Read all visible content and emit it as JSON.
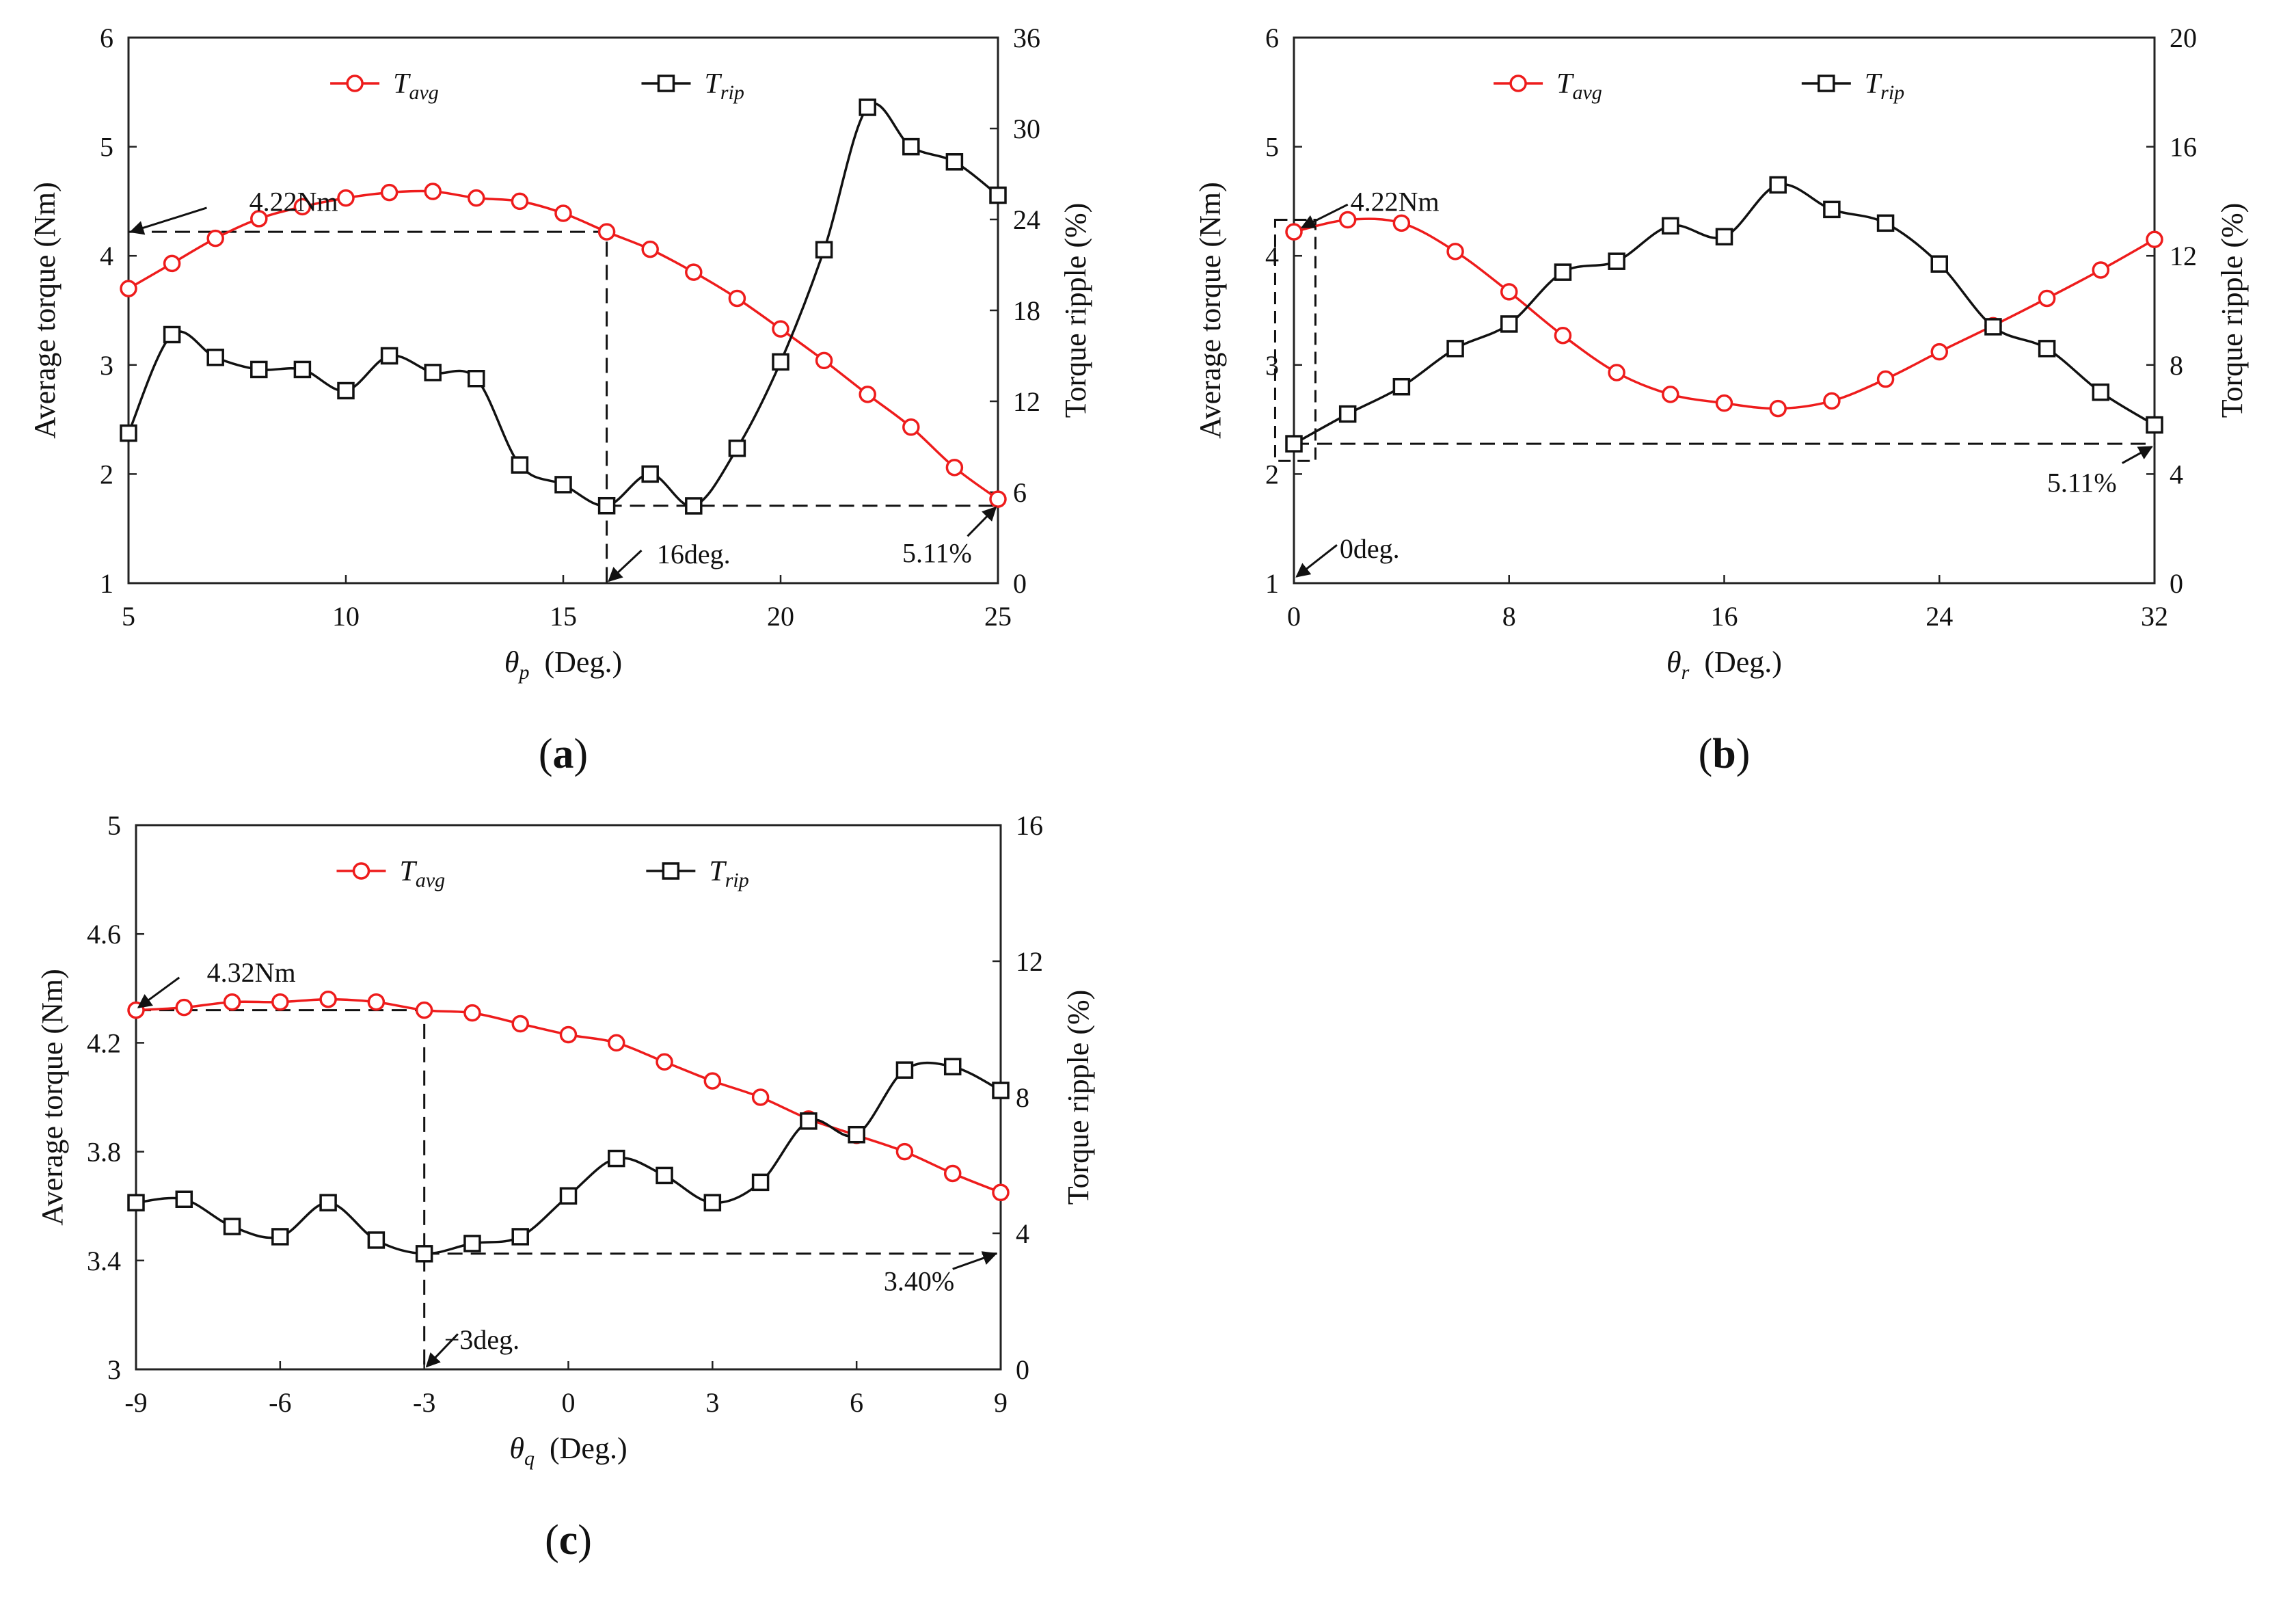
{
  "colors": {
    "avg": "#ee1c1c",
    "rip": "#111111",
    "frame": "#222222"
  },
  "chart_data": [
    {
      "type": "line",
      "panel_label": "a",
      "xlabel": {
        "sym": "θ",
        "sub": "p",
        "rest": "(Deg.)"
      },
      "ylabel_left": "Average torque  (Nm)",
      "ylabel_right": "Torque ripple (%)",
      "xlim": [
        5,
        25
      ],
      "xticks": [
        5,
        10,
        15,
        20,
        25
      ],
      "xtick_labels": [
        "5",
        "10",
        "15",
        "20",
        "25"
      ],
      "ylim_left": [
        1,
        6
      ],
      "yticks_left": [
        1,
        2,
        3,
        4,
        5,
        6
      ],
      "ytick_labels_left": [
        "1",
        "2",
        "3",
        "4",
        "5",
        "6"
      ],
      "ylim_right": [
        0,
        36
      ],
      "yticks_right": [
        0,
        6,
        12,
        18,
        24,
        30,
        36
      ],
      "ytick_labels_right": [
        "0",
        "6",
        "12",
        "18",
        "24",
        "30",
        "36"
      ],
      "legend": [
        {
          "base": "T",
          "sub": "avg",
          "series": "avg"
        },
        {
          "base": "T",
          "sub": "rip",
          "series": "rip"
        }
      ],
      "series": [
        {
          "name": "T_avg",
          "axis": "left",
          "marker": "circle",
          "x": [
            5,
            6,
            7,
            8,
            9,
            10,
            11,
            12,
            13,
            14,
            15,
            16,
            17,
            18,
            19,
            20,
            21,
            22,
            23,
            24,
            25
          ],
          "values": [
            3.7,
            3.93,
            4.16,
            4.34,
            4.45,
            4.53,
            4.58,
            4.59,
            4.53,
            4.5,
            4.39,
            4.22,
            4.06,
            3.85,
            3.61,
            3.33,
            3.04,
            2.73,
            2.43,
            2.06,
            1.77
          ]
        },
        {
          "name": "T_rip",
          "axis": "right",
          "marker": "square",
          "x": [
            5,
            6,
            7,
            8,
            9,
            10,
            11,
            12,
            13,
            14,
            15,
            16,
            17,
            18,
            19,
            20,
            21,
            22,
            23,
            24,
            25
          ],
          "values": [
            9.9,
            16.4,
            14.9,
            14.1,
            14.1,
            12.7,
            15.0,
            13.9,
            13.5,
            7.8,
            6.5,
            5.11,
            7.2,
            5.1,
            8.9,
            14.6,
            22.0,
            31.4,
            28.8,
            27.8,
            25.6
          ]
        }
      ],
      "guides": [
        {
          "axis": "left",
          "points": [
            [
              5,
              4.22
            ],
            [
              16,
              4.22
            ],
            [
              16,
              1
            ]
          ]
        },
        {
          "axis": "right",
          "points": [
            [
              16,
              5.11
            ],
            [
              25,
              5.11
            ]
          ]
        }
      ],
      "annotations": [
        {
          "text": "4.22Nm",
          "axis": "left",
          "label_at": [
            8.8,
            4.5
          ],
          "anchor": "middle",
          "arrow_from": [
            6.8,
            4.44
          ],
          "arrow_to": [
            5.05,
            4.22
          ]
        },
        {
          "text": "16deg.",
          "axis": "left",
          "label_at": [
            18.0,
            1.27
          ],
          "anchor": "middle",
          "arrow_from": [
            16.8,
            1.3
          ],
          "arrow_to": [
            16.05,
            1.02
          ]
        },
        {
          "text": "5.11%",
          "axis": "right",
          "label_at": [
            23.6,
            2.0
          ],
          "anchor": "middle",
          "arrow_from": [
            24.3,
            3.1
          ],
          "arrow_to": [
            24.95,
            5.0
          ]
        }
      ]
    },
    {
      "type": "line",
      "panel_label": "b",
      "xlabel": {
        "sym": "θ",
        "sub": "r",
        "rest": "(Deg.)"
      },
      "ylabel_left": "Average torque  (Nm)",
      "ylabel_right": "Torque ripple (%)",
      "xlim": [
        0,
        32
      ],
      "xticks": [
        0,
        8,
        16,
        24,
        32
      ],
      "xtick_labels": [
        "0",
        "8",
        "16",
        "24",
        "32"
      ],
      "ylim_left": [
        1,
        6
      ],
      "yticks_left": [
        1,
        2,
        3,
        4,
        5,
        6
      ],
      "ytick_labels_left": [
        "1",
        "2",
        "3",
        "4",
        "5",
        "6"
      ],
      "ylim_right": [
        0,
        20
      ],
      "yticks_right": [
        0,
        4,
        8,
        12,
        16,
        20
      ],
      "ytick_labels_right": [
        "0",
        "4",
        "8",
        "12",
        "16",
        "20"
      ],
      "legend": [
        {
          "base": "T",
          "sub": "avg",
          "series": "avg"
        },
        {
          "base": "T",
          "sub": "rip",
          "series": "rip"
        }
      ],
      "series": [
        {
          "name": "T_avg",
          "axis": "left",
          "marker": "circle",
          "x": [
            0,
            2,
            4,
            6,
            8,
            10,
            12,
            14,
            16,
            18,
            20,
            22,
            24,
            26,
            28,
            30,
            32
          ],
          "values": [
            4.22,
            4.33,
            4.3,
            4.04,
            3.67,
            3.27,
            2.93,
            2.73,
            2.65,
            2.6,
            2.67,
            2.87,
            3.12,
            3.36,
            3.61,
            3.87,
            4.15
          ]
        },
        {
          "name": "T_rip",
          "axis": "right",
          "marker": "square",
          "x": [
            0,
            2,
            4,
            6,
            8,
            10,
            12,
            14,
            16,
            18,
            20,
            22,
            24,
            26,
            28,
            30,
            32
          ],
          "values": [
            5.11,
            6.2,
            7.2,
            8.6,
            9.5,
            11.4,
            11.8,
            13.1,
            12.7,
            14.6,
            13.7,
            13.2,
            11.7,
            9.4,
            8.6,
            7.0,
            5.8
          ]
        }
      ],
      "guides": [
        {
          "axis": "right",
          "points": [
            [
              0,
              5.11
            ],
            [
              32,
              5.11
            ]
          ]
        }
      ],
      "boxes": [
        {
          "axis": "left",
          "x0": -0.7,
          "x1": 0.8,
          "y0": 2.12,
          "y1": 4.33
        }
      ],
      "annotations": [
        {
          "text": "4.22Nm",
          "axis": "left",
          "label_at": [
            2.1,
            4.5
          ],
          "anchor": "start",
          "arrow_from": [
            2.0,
            4.47
          ],
          "arrow_to": [
            0.3,
            4.26
          ]
        },
        {
          "text": "0deg.",
          "axis": "left",
          "label_at": [
            1.7,
            1.32
          ],
          "anchor": "start",
          "arrow_from": [
            1.6,
            1.35
          ],
          "arrow_to": [
            0.1,
            1.06
          ]
        },
        {
          "text": "5.11%",
          "axis": "right",
          "label_at": [
            29.3,
            3.7
          ],
          "anchor": "middle",
          "arrow_from": [
            30.8,
            4.4
          ],
          "arrow_to": [
            31.9,
            5.0
          ]
        }
      ]
    },
    {
      "type": "line",
      "panel_label": "c",
      "xlabel": {
        "sym": "θ",
        "sub": "q",
        "rest": "(Deg.)"
      },
      "ylabel_left": "Average torque  (Nm)",
      "ylabel_right": "Torque ripple (%)",
      "xlim": [
        -9,
        9
      ],
      "xticks": [
        -9,
        -6,
        -3,
        0,
        3,
        6,
        9
      ],
      "xtick_labels": [
        "-9",
        "-6",
        "-3",
        "0",
        "3",
        "6",
        "9"
      ],
      "ylim_left": [
        3,
        5
      ],
      "yticks_left": [
        3,
        3.4,
        3.8,
        4.2,
        4.6,
        5
      ],
      "ytick_labels_left": [
        "3",
        "3.4",
        "3.8",
        "4.2",
        "4.6",
        "5"
      ],
      "ylim_right": [
        0,
        16
      ],
      "yticks_right": [
        0,
        4,
        8,
        12,
        16
      ],
      "ytick_labels_right": [
        "0",
        "4",
        "8",
        "12",
        "16"
      ],
      "legend": [
        {
          "base": "T",
          "sub": "avg",
          "series": "avg"
        },
        {
          "base": "T",
          "sub": "rip",
          "series": "rip"
        }
      ],
      "series": [
        {
          "name": "T_avg",
          "axis": "left",
          "marker": "circle",
          "x": [
            -9,
            -8,
            -7,
            -6,
            -5,
            -4,
            -3,
            -2,
            -1,
            0,
            1,
            2,
            3,
            4,
            5,
            6,
            7,
            8,
            9
          ],
          "values": [
            4.32,
            4.33,
            4.35,
            4.35,
            4.36,
            4.35,
            4.32,
            4.31,
            4.27,
            4.23,
            4.2,
            4.13,
            4.06,
            4.0,
            3.92,
            3.86,
            3.8,
            3.72,
            3.65
          ]
        },
        {
          "name": "T_rip",
          "axis": "right",
          "marker": "square",
          "x": [
            -9,
            -8,
            -7,
            -6,
            -5,
            -4,
            -3,
            -2,
            -1,
            0,
            1,
            2,
            3,
            4,
            5,
            6,
            7,
            8,
            9
          ],
          "values": [
            4.9,
            5.0,
            4.2,
            3.9,
            4.9,
            3.8,
            3.4,
            3.7,
            3.9,
            5.1,
            6.2,
            5.7,
            4.9,
            5.5,
            7.3,
            6.9,
            8.8,
            8.9,
            8.2
          ]
        }
      ],
      "guides": [
        {
          "axis": "left",
          "points": [
            [
              -9,
              4.32
            ],
            [
              -3,
              4.32
            ],
            [
              -3,
              3.0
            ]
          ]
        },
        {
          "axis": "right",
          "points": [
            [
              -3,
              3.4
            ],
            [
              9,
              3.4
            ]
          ]
        }
      ],
      "annotations": [
        {
          "text": "4.32Nm",
          "axis": "left",
          "label_at": [
            -6.6,
            4.46
          ],
          "anchor": "middle",
          "arrow_from": [
            -8.1,
            4.44
          ],
          "arrow_to": [
            -8.95,
            4.33
          ]
        },
        {
          "text": "−3deg.",
          "axis": "left",
          "label_at": [
            -1.8,
            3.11
          ],
          "anchor": "middle",
          "arrow_from": [
            -2.3,
            3.13
          ],
          "arrow_to": [
            -2.95,
            3.01
          ]
        },
        {
          "text": "3.40%",
          "axis": "right",
          "label_at": [
            7.3,
            2.6
          ],
          "anchor": "middle",
          "arrow_from": [
            8.0,
            2.95
          ],
          "arrow_to": [
            8.9,
            3.4
          ]
        }
      ]
    }
  ]
}
